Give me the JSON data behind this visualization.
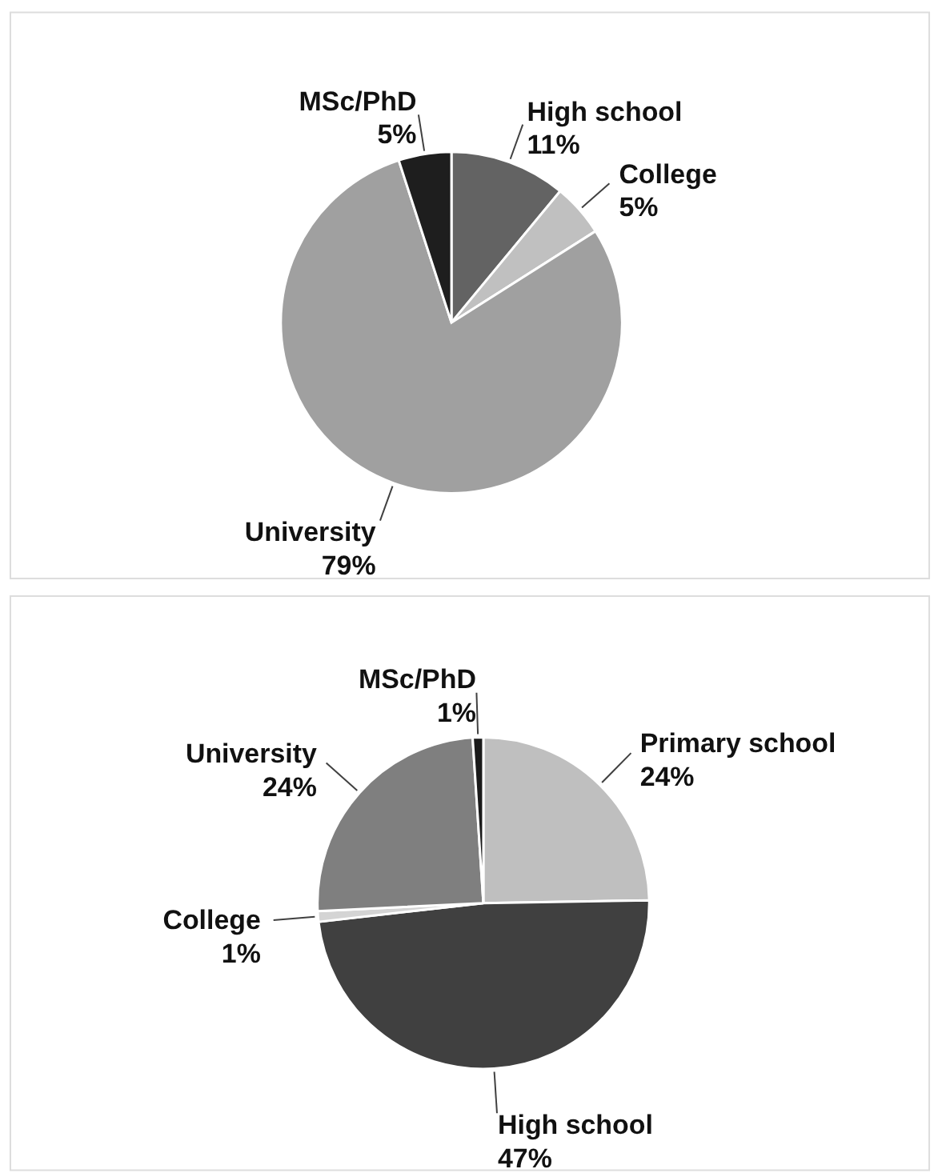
{
  "chart_data": [
    {
      "type": "pie",
      "categories": [
        "High school",
        "College",
        "University",
        "MSc/PhD"
      ],
      "values": [
        11,
        5,
        79,
        5
      ],
      "colors": [
        "#636363",
        "#c0c0c0",
        "#a0a0a0",
        "#1e1e1e"
      ],
      "value_labels": [
        "11%",
        "5%",
        "79%",
        "5%"
      ]
    },
    {
      "type": "pie",
      "categories": [
        "Primary school",
        "High school",
        "College",
        "University",
        "MSc/PhD"
      ],
      "values": [
        24,
        47,
        1,
        24,
        1
      ],
      "colors": [
        "#bfbfbf",
        "#404040",
        "#d4d4d4",
        "#7f7f7f",
        "#1a1a1a"
      ],
      "value_labels": [
        "24%",
        "47%",
        "1%",
        "24%",
        "1%"
      ]
    }
  ]
}
